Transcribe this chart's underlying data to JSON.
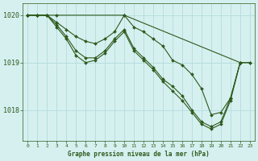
{
  "title": "Graphe pression niveau de la mer (hPa)",
  "bg_color": "#d6f0f0",
  "grid_color": "#b8dede",
  "line_color": "#2d5a1b",
  "marker_color": "#2d5a1b",
  "xlim": [
    -0.5,
    23.5
  ],
  "ylim": [
    1017.35,
    1020.25
  ],
  "yticks": [
    1018,
    1019,
    1020
  ],
  "xticks": [
    0,
    1,
    2,
    3,
    4,
    5,
    6,
    7,
    8,
    9,
    10,
    11,
    12,
    13,
    14,
    15,
    16,
    17,
    18,
    19,
    20,
    21,
    22,
    23
  ],
  "series": [
    {
      "x": [
        0,
        1,
        2,
        3,
        4,
        5,
        6,
        7,
        8,
        9,
        10,
        11,
        12,
        13,
        14,
        15,
        16,
        17,
        18,
        19,
        20,
        21,
        22,
        23
      ],
      "y": [
        1020.0,
        1020.0,
        1020.0,
        1019.85,
        1019.7,
        1019.55,
        1019.45,
        1019.4,
        1019.5,
        1019.65,
        1020.0,
        1019.75,
        1019.65,
        1019.5,
        1019.35,
        1019.05,
        1018.95,
        1018.75,
        1018.45,
        1017.9,
        1017.95,
        1018.25,
        1019.0,
        1019.0
      ]
    },
    {
      "x": [
        0,
        1,
        2,
        3,
        4,
        5,
        6,
        7,
        8,
        9,
        10,
        11,
        12,
        13,
        14,
        15,
        16,
        17,
        18,
        19,
        20,
        21,
        22
      ],
      "y": [
        1020.0,
        1020.0,
        1020.0,
        1019.8,
        1019.55,
        1019.25,
        1019.1,
        1019.1,
        1019.25,
        1019.5,
        1019.7,
        1019.3,
        1019.1,
        1018.9,
        1018.65,
        1018.5,
        1018.3,
        1018.0,
        1017.75,
        1017.65,
        1017.75,
        1018.25,
        1019.0
      ]
    },
    {
      "x": [
        0,
        1,
        2,
        3,
        4,
        5,
        6,
        7,
        8,
        9,
        10,
        11,
        12,
        13,
        14,
        15,
        16,
        17,
        18,
        19,
        20,
        21,
        22
      ],
      "y": [
        1020.0,
        1020.0,
        1020.0,
        1019.75,
        1019.5,
        1019.15,
        1019.0,
        1019.05,
        1019.2,
        1019.45,
        1019.65,
        1019.25,
        1019.05,
        1018.85,
        1018.6,
        1018.4,
        1018.2,
        1017.95,
        1017.7,
        1017.6,
        1017.7,
        1018.2,
        1019.0
      ]
    },
    {
      "x": [
        0,
        1,
        2,
        3,
        10,
        22,
        23
      ],
      "y": [
        1020.0,
        1020.0,
        1020.0,
        1020.0,
        1020.0,
        1019.0,
        1019.0
      ]
    }
  ]
}
